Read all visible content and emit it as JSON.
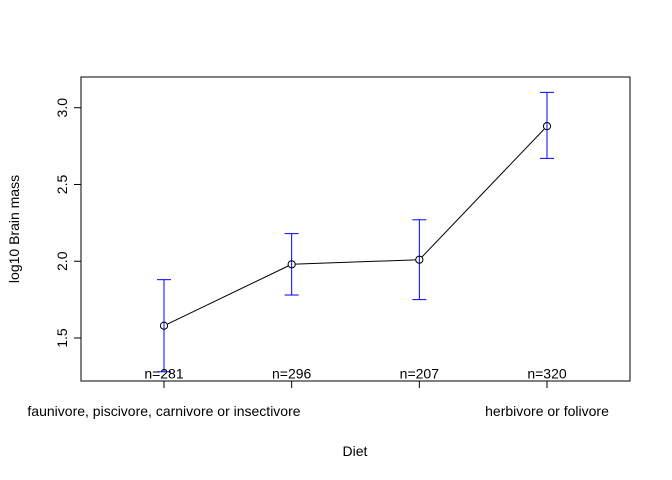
{
  "chart_data": {
    "type": "line",
    "title": "",
    "xlabel": "Diet",
    "ylabel": "log10 Brain mass",
    "ylim": [
      1.22,
      3.2
    ],
    "yticks": [
      1.5,
      2.0,
      2.5,
      3.0
    ],
    "ytick_labels": [
      "1.5",
      "2.0",
      "2.5",
      "3.0"
    ],
    "x": [
      1,
      2,
      3,
      4
    ],
    "xlim": [
      0.35,
      4.65
    ],
    "xtick_labels": [
      {
        "x": 1,
        "label": "faunivore, piscivore, carnivore or insectivore"
      },
      {
        "x": 4,
        "label": "herbivore or folivore"
      }
    ],
    "grid": false,
    "series": [
      {
        "name": "mean",
        "values": [
          1.58,
          1.98,
          2.01,
          2.88
        ],
        "lower": [
          1.28,
          1.78,
          1.75,
          2.67
        ],
        "upper": [
          1.88,
          2.18,
          2.27,
          3.1
        ],
        "line_color": "#000000",
        "errorbar_color": "#0000ff"
      }
    ],
    "annotations": [
      {
        "x": 1,
        "y": 1.27,
        "text": "n=281"
      },
      {
        "x": 2,
        "y": 1.27,
        "text": "n=296"
      },
      {
        "x": 3,
        "y": 1.27,
        "text": "n=207"
      },
      {
        "x": 4,
        "y": 1.27,
        "text": "n=320"
      }
    ]
  }
}
